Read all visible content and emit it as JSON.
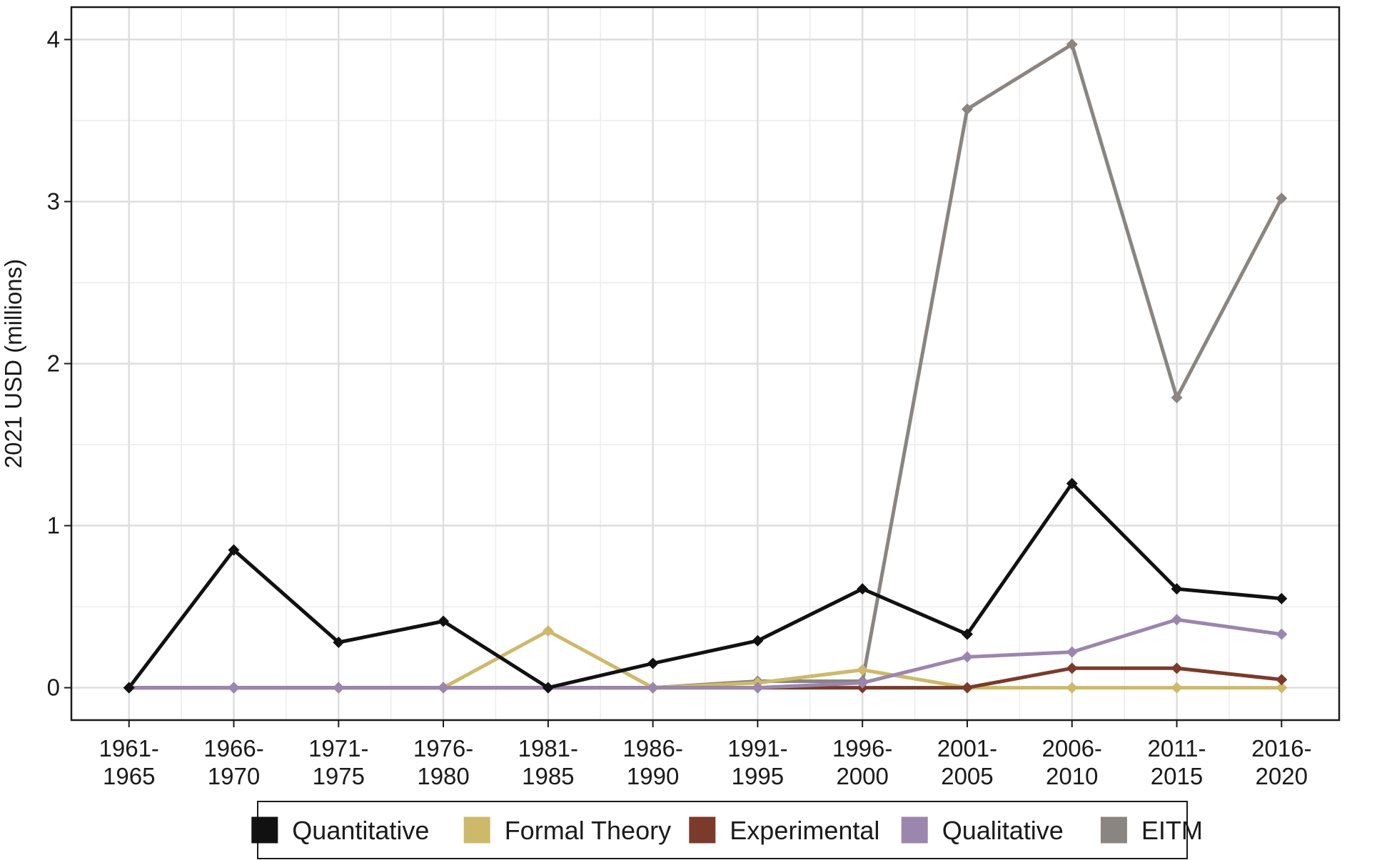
{
  "chart_data": {
    "type": "line",
    "title": "",
    "xlabel": "",
    "ylabel": "2021 USD (millions)",
    "ylim": [
      -0.2,
      4.2
    ],
    "yticks": [
      "0",
      "1",
      "2",
      "3",
      "4"
    ],
    "grid": true,
    "legend_position": "bottom",
    "categories": [
      [
        "1961-",
        "1965"
      ],
      [
        "1966-",
        "1970"
      ],
      [
        "1971-",
        "1975"
      ],
      [
        "1976-",
        "1980"
      ],
      [
        "1981-",
        "1985"
      ],
      [
        "1986-",
        "1990"
      ],
      [
        "1991-",
        "1995"
      ],
      [
        "1996-",
        "2000"
      ],
      [
        "2001-",
        "2005"
      ],
      [
        "2006-",
        "2010"
      ],
      [
        "2011-",
        "2015"
      ],
      [
        "2016-",
        "2020"
      ]
    ],
    "series": [
      {
        "name": "Quantitative",
        "color": "#111111",
        "values": [
          0,
          0.85,
          0.28,
          0.41,
          0,
          0.15,
          0.29,
          0.61,
          0.33,
          1.26,
          0.61,
          0.55
        ]
      },
      {
        "name": "Formal Theory",
        "color": "#cdb96a",
        "values": [
          0,
          0,
          0,
          0,
          0.35,
          0,
          0.03,
          0.11,
          0,
          0,
          0,
          0
        ]
      },
      {
        "name": "Experimental",
        "color": "#7a3b2a",
        "values": [
          0,
          0,
          0,
          0,
          0,
          0,
          0,
          0,
          0,
          0.12,
          0.12,
          0.05
        ]
      },
      {
        "name": "Qualitative",
        "color": "#9b86ad",
        "values": [
          0,
          0,
          0,
          0,
          0,
          0,
          0,
          0.03,
          0.19,
          0.22,
          0.42,
          0.33
        ]
      },
      {
        "name": "EITM",
        "color": "#8a8580",
        "values": [
          0,
          0,
          0,
          0,
          0,
          0,
          0.04,
          0.04,
          3.57,
          3.97,
          1.79,
          3.02
        ]
      }
    ]
  }
}
